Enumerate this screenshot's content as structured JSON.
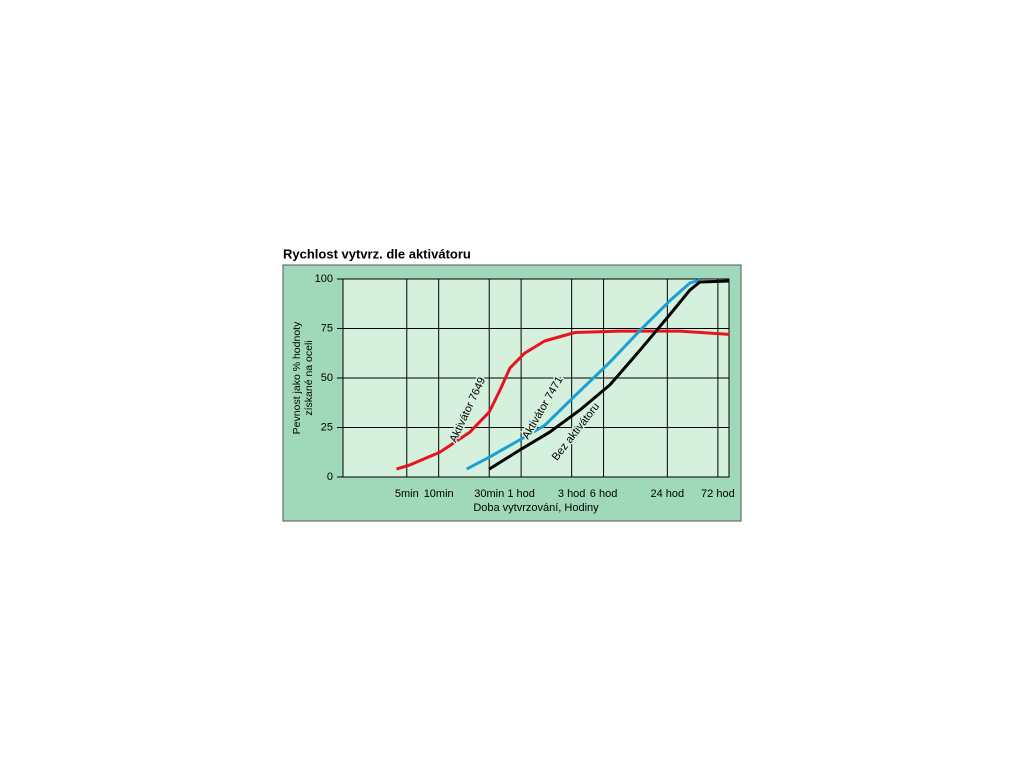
{
  "chart_data": {
    "type": "line",
    "title": "Rychlost vytvrz. dle aktivátoru",
    "xlabel": "Doba vytvrzování, Hodiny",
    "ylabel": [
      "Pevnost jako % hodnoty",
      "získané na oceli"
    ],
    "xscale": "log",
    "grid": true,
    "xlim": [
      1.25,
      5500
    ],
    "xticks": [
      {
        "value": 5,
        "label": "5min"
      },
      {
        "value": 10,
        "label": "10min"
      },
      {
        "value": 30,
        "label": "30min"
      },
      {
        "value": 60,
        "label": "1 hod"
      },
      {
        "value": 180,
        "label": "3 hod"
      },
      {
        "value": 360,
        "label": "6 hod"
      },
      {
        "value": 1440,
        "label": "24 hod"
      },
      {
        "value": 4320,
        "label": "72 hod"
      }
    ],
    "ylim": [
      0,
      100
    ],
    "yticks": [
      0,
      25,
      50,
      75,
      100
    ],
    "series": [
      {
        "name": "Aktivátor 7649",
        "color": "#e8141c",
        "x": [
          4,
          5.3,
          10.3,
          19.7,
          30,
          38,
          47,
          65,
          100,
          193,
          513,
          1890,
          5500
        ],
        "values": [
          4,
          6,
          12.6,
          22.7,
          32.8,
          44,
          55,
          62.6,
          68.7,
          73,
          73.7,
          73.7,
          72
        ]
      },
      {
        "name": "Aktivátor 7471",
        "color": "#1a9fd6",
        "x": [
          18.4,
          30,
          58,
          100,
          193,
          413,
          793,
          1520,
          2350,
          2920
        ],
        "values": [
          4,
          10,
          18.7,
          26,
          41,
          58,
          74,
          89,
          98,
          99.5
        ]
      },
      {
        "name": "Bez aktivátoru",
        "color": "#000000",
        "x": [
          30,
          58,
          112,
          215,
          413,
          793,
          1520,
          2350,
          2920,
          5500
        ],
        "values": [
          4,
          13.6,
          22.7,
          33.8,
          46.5,
          64,
          82,
          94.4,
          98.5,
          99
        ]
      }
    ]
  }
}
